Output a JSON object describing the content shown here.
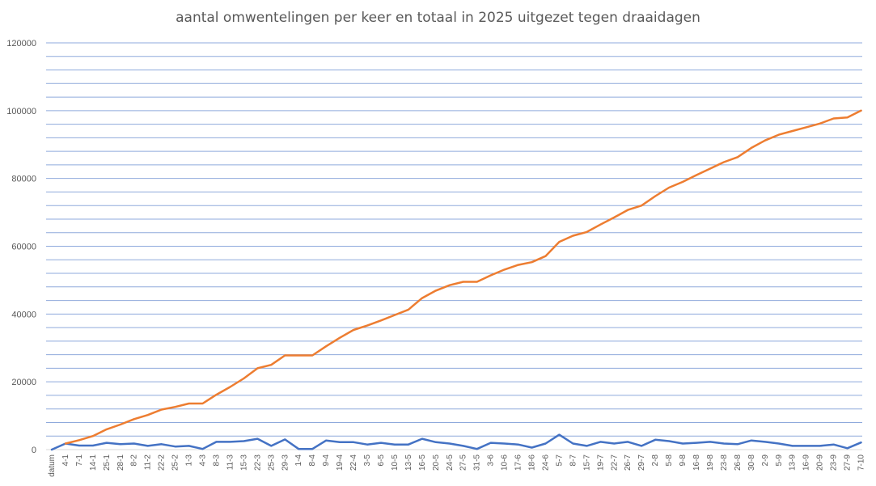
{
  "chart_data": {
    "type": "line",
    "title": "aantal omwentelingen per keer en totaal in 2025 uitgezet tegen draaidagen",
    "xlabel": "",
    "ylabel": "",
    "ylim": [
      0,
      120000
    ],
    "y_ticks": [
      "0",
      "20000",
      "40000",
      "60000",
      "80000",
      "100000",
      "120000"
    ],
    "grid": true,
    "legend": "none",
    "categories": [
      "datum",
      "4-1",
      "7-1",
      "14-1",
      "25-1",
      "28-1",
      "8-2",
      "11-2",
      "22-2",
      "25-2",
      "1-3",
      "4-3",
      "8-3",
      "11-3",
      "15-3",
      "22-3",
      "25-3",
      "29-3",
      "1-4",
      "8-4",
      "9-4",
      "19-4",
      "22-4",
      "3-5",
      "6-5",
      "10-5",
      "13-5",
      "16-5",
      "20-5",
      "24-5",
      "27-5",
      "31-5",
      "3-6",
      "10-6",
      "17-6",
      "18-6",
      "24-6",
      "5-7",
      "8-7",
      "15-7",
      "19-7",
      "22-7",
      "26-7",
      "29-7",
      "2-8",
      "5-8",
      "9-8",
      "16-8",
      "19-8",
      "23-8",
      "26-8",
      "30-8",
      "2-9",
      "5-9",
      "13-9",
      "16-9",
      "20-9",
      "23-9",
      "27-9",
      "7-10"
    ],
    "series": [
      {
        "color": "#4472C4",
        "values": [
          0,
          1800,
          1200,
          1200,
          2000,
          1600,
          1800,
          1100,
          1600,
          900,
          1100,
          200,
          2300,
          2300,
          2500,
          3200,
          1100,
          3000,
          200,
          200,
          2700,
          2200,
          2200,
          1500,
          2000,
          1500,
          1500,
          3200,
          2200,
          1800,
          1100,
          200,
          2000,
          1800,
          1500,
          600,
          1800,
          4400,
          1800,
          1100,
          2300,
          1800,
          2300,
          1100,
          2900,
          2500,
          1800,
          2000,
          2300,
          1800,
          1600,
          2700,
          2300,
          1800,
          1100,
          1100,
          1100,
          1500,
          400,
          2100
        ]
      },
      {
        "color": "#ED7D31",
        "values": [
          null,
          1800,
          2800,
          4000,
          6000,
          7400,
          9000,
          10200,
          11800,
          12600,
          13600,
          13600,
          16200,
          18500,
          21000,
          24000,
          25000,
          27800,
          27800,
          27800,
          30500,
          33000,
          35300,
          36600,
          38100,
          39700,
          41300,
          44700,
          46900,
          48500,
          49500,
          49500,
          51400,
          53100,
          54500,
          55300,
          57100,
          61300,
          63100,
          64200,
          66400,
          68500,
          70700,
          72000,
          74800,
          77300,
          79000,
          81000,
          82900,
          84800,
          86300,
          89000,
          91200,
          92900,
          94000,
          95100,
          96200,
          97700,
          98000,
          100000
        ]
      }
    ]
  }
}
